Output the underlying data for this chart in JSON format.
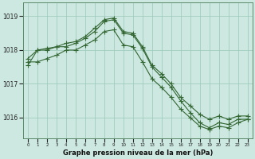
{
  "xlabel_label": "Graphe pression niveau de la mer (hPa)",
  "bg_color": "#cce8e0",
  "grid_color": "#99c8b8",
  "line_color": "#336633",
  "x_ticks": [
    0,
    1,
    2,
    3,
    4,
    5,
    6,
    7,
    8,
    9,
    10,
    11,
    12,
    13,
    14,
    15,
    16,
    17,
    18,
    19,
    20,
    21,
    22,
    23
  ],
  "ylim": [
    1015.4,
    1019.4
  ],
  "yticks": [
    1016,
    1017,
    1018,
    1019
  ],
  "line1": {
    "x": [
      0,
      1,
      2,
      3,
      4,
      5,
      6,
      7,
      8,
      9,
      10,
      11,
      12,
      13,
      14,
      15,
      16,
      17,
      18,
      19,
      20,
      21,
      22,
      23
    ],
    "y": [
      1017.75,
      1018.0,
      1018.05,
      1018.1,
      1018.2,
      1018.25,
      1018.4,
      1018.65,
      1018.9,
      1018.95,
      1018.55,
      1018.5,
      1018.1,
      1017.55,
      1017.3,
      1017.0,
      1016.6,
      1016.35,
      1016.1,
      1015.95,
      1016.05,
      1015.95,
      1016.05,
      1016.05
    ]
  },
  "line2": {
    "x": [
      0,
      1,
      2,
      3,
      4,
      5,
      6,
      7,
      8,
      9,
      10,
      11,
      12,
      13,
      14,
      15,
      16,
      17,
      18,
      19,
      20,
      21,
      22,
      23
    ],
    "y": [
      1017.65,
      1017.65,
      1017.75,
      1017.85,
      1018.0,
      1018.0,
      1018.15,
      1018.3,
      1018.55,
      1018.6,
      1018.15,
      1018.1,
      1017.65,
      1017.15,
      1016.9,
      1016.6,
      1016.25,
      1016.0,
      1015.75,
      1015.65,
      1015.75,
      1015.7,
      1015.85,
      1015.95
    ]
  },
  "line3": {
    "x": [
      0,
      1,
      2,
      3,
      4,
      5,
      6,
      7,
      8,
      9,
      10,
      11,
      12,
      13,
      14,
      15,
      16,
      17,
      18,
      19,
      20,
      21,
      22,
      23
    ],
    "y": [
      1017.55,
      1018.0,
      1018.0,
      1018.1,
      1018.1,
      1018.2,
      1018.35,
      1018.55,
      1018.85,
      1018.9,
      1018.5,
      1018.45,
      1018.05,
      1017.5,
      1017.2,
      1016.9,
      1016.5,
      1016.15,
      1015.85,
      1015.7,
      1015.85,
      1015.8,
      1015.95,
      1015.95
    ]
  },
  "marker": "+",
  "markersize": 4,
  "linewidth": 0.8
}
